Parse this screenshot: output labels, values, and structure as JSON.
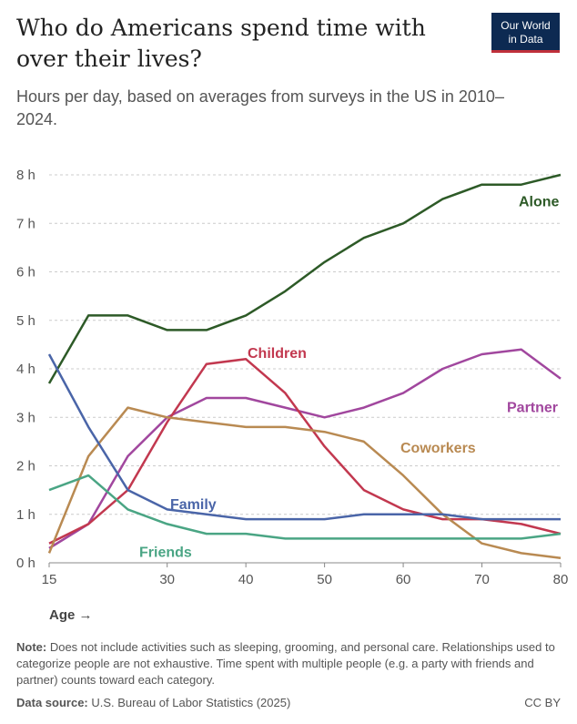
{
  "header": {
    "title": "Who do Americans spend time with over their lives?",
    "subtitle": "Hours per day, based on averages from surveys in the US in 2010–2024.",
    "logo_line1": "Our World",
    "logo_line2": "in Data"
  },
  "footer": {
    "note_label": "Note:",
    "note_text": " Does not include activities such as sleeping, grooming, and personal care. Relationships used to categorize people are not exhaustive. Time spent with multiple people (e.g. a party with friends and partner) counts toward each category.",
    "source_label": "Data source:",
    "source_text": " U.S. Bureau of Labor Statistics (2025)",
    "license": "CC BY"
  },
  "chart_data": {
    "type": "line",
    "xlabel": "Age →",
    "ylabel": "",
    "xlim": [
      15,
      80
    ],
    "ylim": [
      0,
      8
    ],
    "xticks": [
      15,
      30,
      40,
      50,
      60,
      70,
      80
    ],
    "yticks": [
      0,
      1,
      2,
      3,
      4,
      5,
      6,
      7,
      8
    ],
    "ytick_labels": [
      "0 h",
      "1 h",
      "2 h",
      "3 h",
      "4 h",
      "5 h",
      "6 h",
      "7 h",
      "8 h"
    ],
    "grid": "horizontal dashed",
    "legend": "labels placed next to lines",
    "x": [
      15,
      20,
      25,
      30,
      35,
      40,
      45,
      50,
      55,
      60,
      65,
      70,
      75,
      80
    ],
    "series": [
      {
        "name": "Alone",
        "color": "#2d5a27",
        "values": [
          3.7,
          5.1,
          5.1,
          4.8,
          4.8,
          5.1,
          5.6,
          6.2,
          6.7,
          7.0,
          7.5,
          7.8,
          7.8,
          8.0
        ]
      },
      {
        "name": "Partner",
        "color": "#a1479e",
        "values": [
          0.3,
          0.8,
          2.2,
          3.0,
          3.4,
          3.4,
          3.2,
          3.0,
          3.2,
          3.5,
          4.0,
          4.3,
          4.4,
          3.8
        ]
      },
      {
        "name": "Children",
        "color": "#c2384f",
        "values": [
          0.4,
          0.8,
          1.5,
          2.9,
          4.1,
          4.2,
          3.5,
          2.4,
          1.5,
          1.1,
          0.9,
          0.9,
          0.8,
          0.6
        ]
      },
      {
        "name": "Coworkers",
        "color": "#b98a52",
        "values": [
          0.2,
          2.2,
          3.2,
          3.0,
          2.9,
          2.8,
          2.8,
          2.7,
          2.5,
          1.8,
          1.0,
          0.4,
          0.2,
          0.1
        ]
      },
      {
        "name": "Family",
        "color": "#4a65a8",
        "values": [
          4.3,
          2.8,
          1.5,
          1.1,
          1.0,
          0.9,
          0.9,
          0.9,
          1.0,
          1.0,
          1.0,
          0.9,
          0.9,
          0.9
        ]
      },
      {
        "name": "Friends",
        "color": "#4aa584",
        "values": [
          1.5,
          1.8,
          1.1,
          0.8,
          0.6,
          0.6,
          0.5,
          0.5,
          0.5,
          0.5,
          0.5,
          0.5,
          0.5,
          0.6
        ]
      }
    ],
    "annotations": [
      "Alone",
      "Partner",
      "Children",
      "Coworkers",
      "Family",
      "Friends"
    ]
  }
}
